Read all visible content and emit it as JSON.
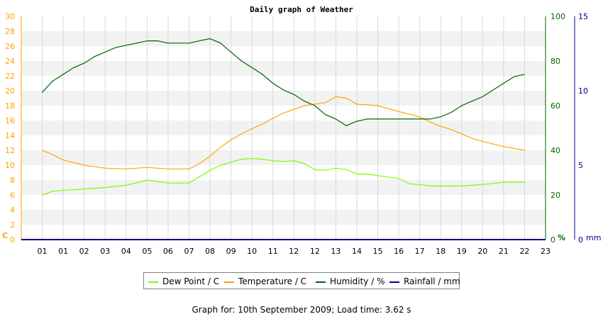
{
  "colors": {
    "dew_point": "#7cfc00",
    "temperature": "#ffa500",
    "humidity": "#006400",
    "rainfall": "#00008b",
    "left_axis": "#ffa500",
    "humidity_axis": "#006400",
    "rain_axis": "#00008b"
  },
  "chart_data": {
    "type": "line",
    "title": "Daily graph of Weather",
    "x_tick_labels": [
      "01",
      "01",
      "02",
      "03",
      "04",
      "05",
      "06",
      "07",
      "08",
      "09",
      "10",
      "11",
      "12",
      "12",
      "13",
      "14",
      "15",
      "16",
      "17",
      "18",
      "19",
      "20",
      "21",
      "22",
      "23"
    ],
    "left_axis": {
      "unit_label": "C",
      "ticks": [
        0,
        2,
        4,
        6,
        8,
        10,
        12,
        14,
        16,
        18,
        20,
        22,
        24,
        26,
        28,
        30
      ],
      "ylim": [
        0,
        30
      ]
    },
    "humidity_axis": {
      "unit_label": "%",
      "ticks": [
        0,
        20,
        40,
        60,
        80,
        100
      ],
      "ylim": [
        0,
        100
      ]
    },
    "rain_axis": {
      "unit_label": "mm",
      "ticks": [
        0,
        5,
        10,
        15
      ],
      "ylim": [
        0,
        15
      ]
    },
    "grid": true,
    "series": [
      {
        "name": "Dew Point / C",
        "axis": "left",
        "x": [
          0,
          0.5,
          1,
          2,
          3,
          4,
          5,
          6,
          7,
          8,
          8.5,
          9,
          9.5,
          10,
          10.5,
          11,
          11.5,
          12,
          12.5,
          13,
          13.5,
          14,
          14.5,
          15,
          15.5,
          16,
          17,
          17.5,
          18,
          18.5,
          19,
          19.5,
          20,
          20.5,
          21,
          22,
          23
        ],
        "y": [
          6.0,
          6.5,
          6.6,
          6.8,
          7.0,
          7.3,
          8.0,
          7.6,
          7.6,
          9.3,
          10.0,
          10.4,
          10.8,
          10.9,
          10.8,
          10.6,
          10.5,
          10.6,
          10.2,
          9.4,
          9.3,
          9.6,
          9.4,
          8.8,
          8.8,
          8.6,
          8.2,
          7.5,
          7.4,
          7.2,
          7.2,
          7.2,
          7.2,
          7.3,
          7.4,
          7.7,
          7.7
        ]
      },
      {
        "name": "Temperature / C",
        "axis": "left",
        "x": [
          0,
          0.5,
          1,
          2,
          3,
          4,
          5,
          6,
          7,
          7.5,
          8,
          8.5,
          9,
          9.5,
          10,
          10.5,
          11,
          11.5,
          12,
          12.5,
          13,
          13.5,
          14,
          14.5,
          15,
          15.5,
          16,
          17,
          18,
          18.5,
          19,
          19.5,
          20,
          20.5,
          21,
          22,
          23
        ],
        "y": [
          12.0,
          11.4,
          10.7,
          10.0,
          9.6,
          9.5,
          9.7,
          9.5,
          9.5,
          10.2,
          11.2,
          12.4,
          13.4,
          14.2,
          14.9,
          15.5,
          16.3,
          17.0,
          17.5,
          18.0,
          18.2,
          18.4,
          19.2,
          19.0,
          18.2,
          18.1,
          18.0,
          17.2,
          16.5,
          15.8,
          15.2,
          14.8,
          14.2,
          13.6,
          13.2,
          12.5,
          12.0
        ]
      },
      {
        "name": "Humidity / %",
        "axis": "humidity",
        "x": [
          0,
          0.5,
          1,
          1.5,
          2,
          2.5,
          3,
          3.5,
          4,
          4.5,
          5,
          5.5,
          6,
          6.5,
          7,
          7.5,
          8,
          8.5,
          9,
          9.5,
          10,
          10.5,
          11,
          11.5,
          12,
          12.5,
          13,
          13.5,
          14,
          14.5,
          15,
          15.5,
          16,
          16.5,
          17,
          17.5,
          18,
          18.5,
          19,
          19.5,
          20,
          20.5,
          21,
          21.5,
          22,
          22.5,
          23
        ],
        "y": [
          66,
          71,
          74,
          77,
          79,
          82,
          84,
          86,
          87,
          88,
          89,
          89,
          88,
          88,
          88,
          89,
          90,
          88,
          84,
          80,
          77,
          74,
          70,
          67,
          65,
          62,
          60,
          56,
          54,
          51,
          53,
          54,
          54,
          54,
          54,
          54,
          54,
          54,
          55,
          57,
          60,
          62,
          64,
          67,
          70,
          73,
          74
        ]
      },
      {
        "name": "Rainfall / mm",
        "axis": "rain",
        "x": [
          0,
          23
        ],
        "y": [
          0,
          0
        ]
      }
    ],
    "legend": {
      "placement": "bottom-center"
    }
  },
  "footer": {
    "text": "Graph for: 10th September 2009; Load time: 3.62 s"
  }
}
